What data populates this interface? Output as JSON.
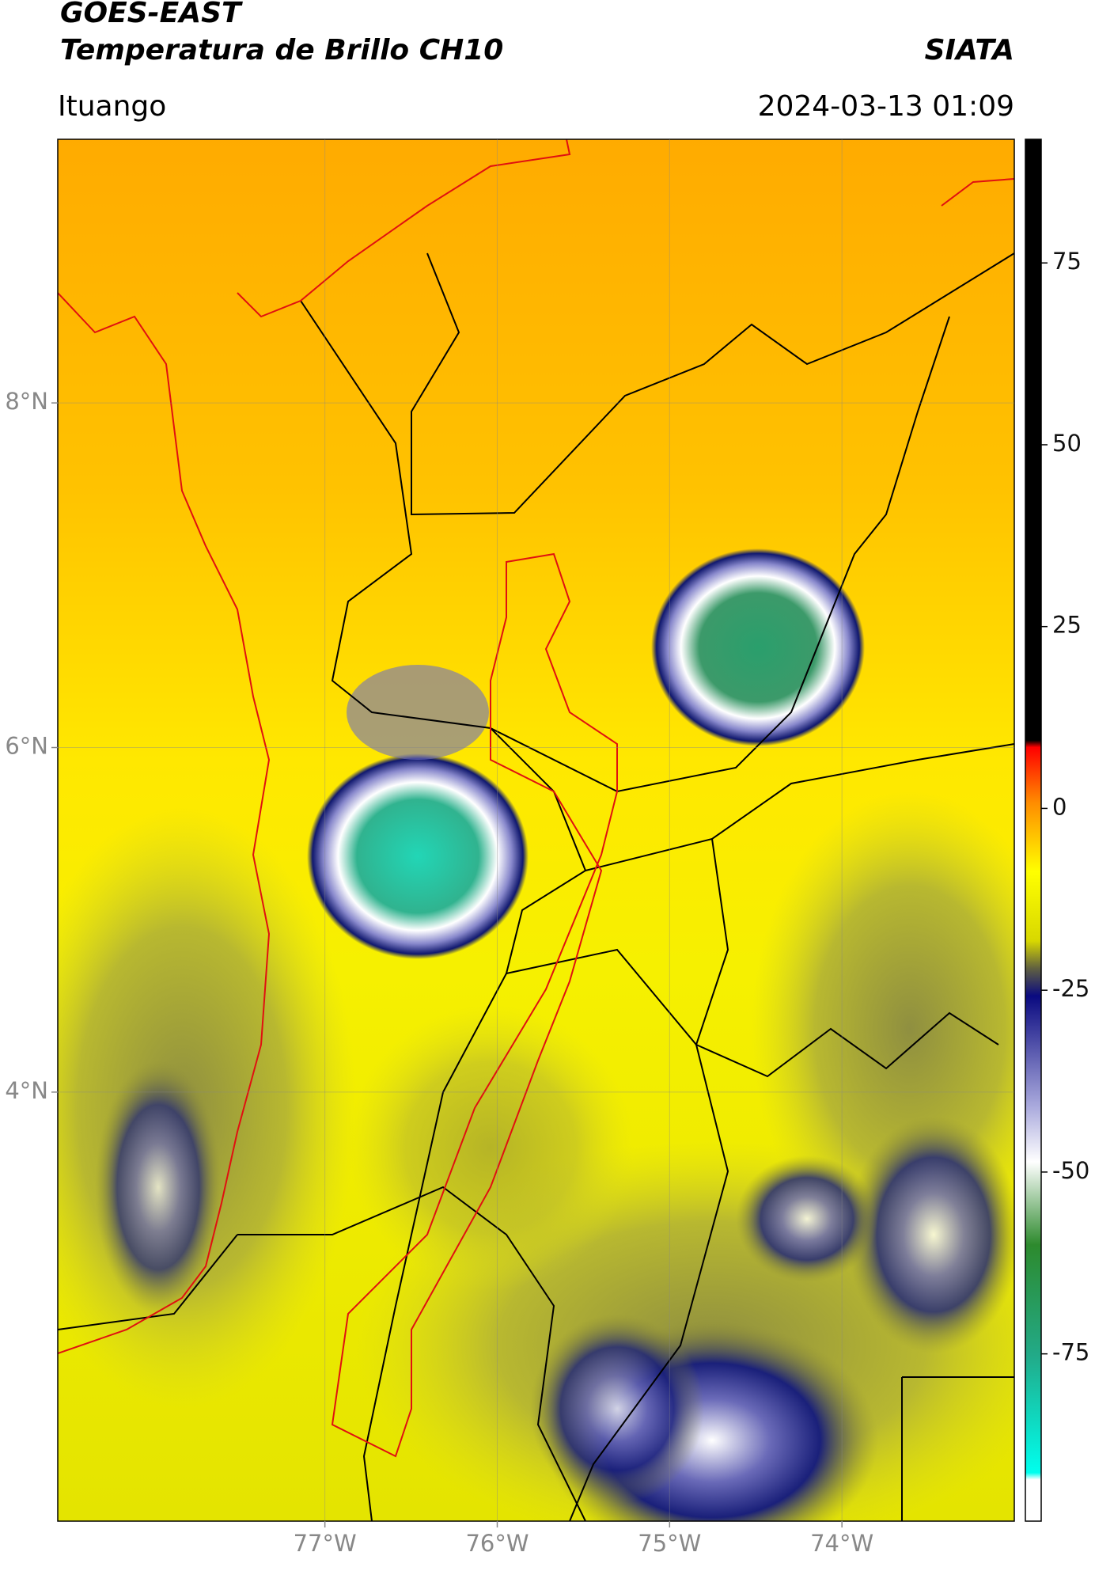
{
  "header": {
    "satellite": "GOES-EAST",
    "product": "Temperatura de Brillo CH10",
    "source": "SIATA",
    "location": "Ituango",
    "datetime": "2024-03-13 01:09"
  },
  "map": {
    "xlim": [
      -78.55,
      -73.0
    ],
    "ylim": [
      1.51,
      9.53
    ],
    "xticks": [
      {
        "value": -77,
        "label": "77°W"
      },
      {
        "value": -76,
        "label": "76°W"
      },
      {
        "value": -75,
        "label": "75°W"
      },
      {
        "value": -74,
        "label": "74°W"
      }
    ],
    "yticks": [
      {
        "value": 8,
        "label": "8°N"
      },
      {
        "value": 6,
        "label": "6°N"
      },
      {
        "value": 4,
        "label": "4°N"
      }
    ]
  },
  "colorbar": {
    "lim": [
      -98,
      92
    ],
    "ticks": [
      75,
      50,
      25,
      0,
      -25,
      -50,
      -75
    ]
  }
}
